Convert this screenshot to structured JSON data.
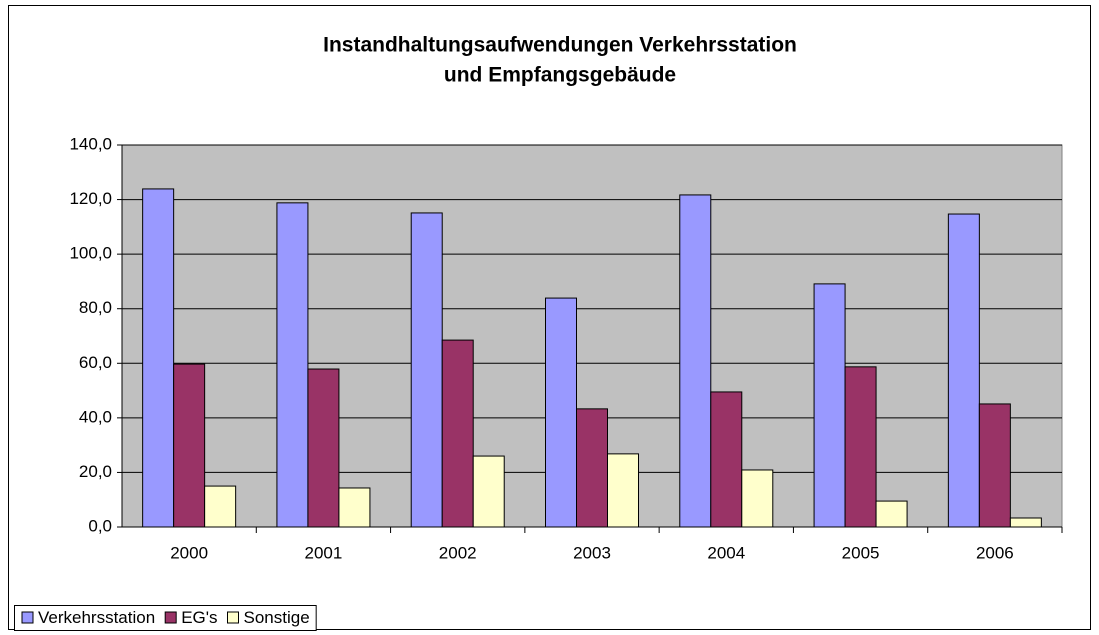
{
  "chart_data": {
    "type": "bar",
    "title": [
      "Instandhaltungsaufwendungen Verkehrsstation",
      "und Empfangsgebäude"
    ],
    "categories": [
      "2000",
      "2001",
      "2002",
      "2003",
      "2004",
      "2005",
      "2006"
    ],
    "series": [
      {
        "name": "Verkehrsstation",
        "color": "#9999ff",
        "values": [
          123.9,
          118.8,
          115.1,
          83.9,
          121.7,
          89.1,
          114.7
        ]
      },
      {
        "name": "EG's",
        "color": "#993366",
        "values": [
          59.7,
          57.9,
          68.5,
          43.3,
          49.5,
          58.7,
          45.1
        ]
      },
      {
        "name": "Sonstige",
        "color": "#ffffcc",
        "values": [
          15.0,
          14.3,
          26.0,
          26.8,
          20.9,
          9.5,
          3.3
        ]
      }
    ],
    "ylim": [
      0,
      140
    ],
    "yticks": [
      {
        "value": 0,
        "label": "0,0"
      },
      {
        "value": 20,
        "label": "20,0"
      },
      {
        "value": 40,
        "label": "40,0"
      },
      {
        "value": 60,
        "label": "60,0"
      },
      {
        "value": 80,
        "label": "80,0"
      },
      {
        "value": 100,
        "label": "100,0"
      },
      {
        "value": 120,
        "label": "120,0"
      },
      {
        "value": 140,
        "label": "140,0"
      }
    ],
    "grid": true,
    "legend": "bottom-left",
    "plot_background": "#c0c0c0"
  }
}
